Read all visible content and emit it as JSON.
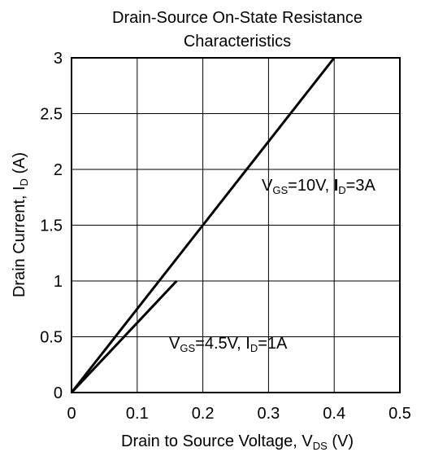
{
  "chart_data": {
    "type": "line",
    "title_lines": [
      "Drain-Source On-State Resistance",
      "Characteristics"
    ],
    "xlabel": {
      "main": "Drain to Source Voltage, V",
      "sub": "DS",
      "tail": " (V)"
    },
    "ylabel": {
      "main": "Drain Current, I",
      "sub": "D",
      "tail": " (A)"
    },
    "xlim": [
      0,
      0.5
    ],
    "ylim": [
      0,
      3
    ],
    "x_ticks": [
      0,
      0.1,
      0.2,
      0.3,
      0.4,
      0.5
    ],
    "x_tick_labels": [
      "0",
      "0.1",
      "0.2",
      "0.3",
      "0.4",
      "0.5"
    ],
    "y_ticks": [
      0,
      0.5,
      1,
      1.5,
      2,
      2.5,
      3
    ],
    "y_tick_labels": [
      "0",
      "0.5",
      "1",
      "1.5",
      "2",
      "2.5",
      "3"
    ],
    "grid": true,
    "series": [
      {
        "points": [
          [
            0,
            0
          ],
          [
            0.4,
            3
          ]
        ],
        "label_parts": {
          "v": "V",
          "vsub": "GS",
          "vval": "=10V, ",
          "i": "I",
          "isub": "D",
          "ival": "=3A"
        }
      },
      {
        "points": [
          [
            0,
            0
          ],
          [
            0.16,
            1
          ]
        ],
        "label_parts": {
          "v": "V",
          "vsub": "GS",
          "vval": "=4.5V, ",
          "i": "I",
          "isub": "D",
          "ival": "=1A"
        }
      }
    ],
    "colors": {
      "line": "#000000",
      "grid": "#000000"
    }
  }
}
